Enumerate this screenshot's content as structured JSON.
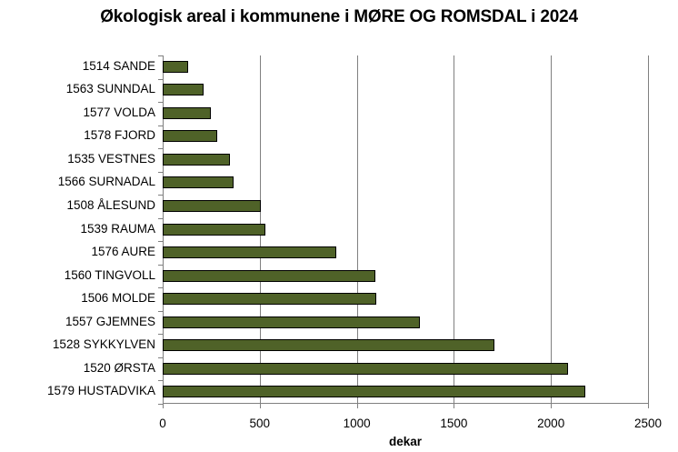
{
  "chart_data": {
    "type": "bar",
    "orientation": "horizontal",
    "title": "Økologisk areal i kommunene i MØRE OG ROMSDAL i 2024",
    "xlabel": "dekar",
    "ylabel": "",
    "xlim": [
      0,
      2500
    ],
    "xticks": [
      0,
      500,
      1000,
      1500,
      2000,
      2500
    ],
    "grid": "vertical",
    "legend": "none",
    "bar_color": "#4f6228",
    "bar_edge_color": "#000000",
    "categories": [
      "1514 SANDE",
      "1563 SUNNDAL",
      "1577 VOLDA",
      "1578 FJORD",
      "1535 VESTNES",
      "1566 SURNADAL",
      "1508 ÅLESUND",
      "1539 RAUMA",
      "1576 AURE",
      "1560 TINGVOLL",
      "1506 MOLDE",
      "1557 GJEMNES",
      "1528 SYKKYLVEN",
      "1520 ØRSTA",
      "1579 HUSTADVIKA"
    ],
    "values": [
      130,
      212,
      247,
      282,
      348,
      364,
      507,
      527,
      894,
      1097,
      1100,
      1323,
      1708,
      2086,
      2178
    ]
  }
}
